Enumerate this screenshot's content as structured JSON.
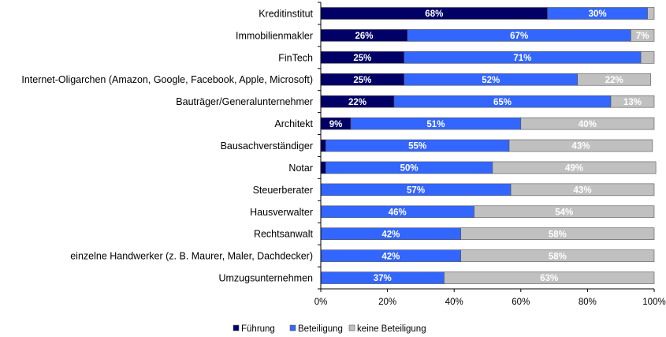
{
  "chart_data": {
    "type": "bar",
    "orientation": "horizontal",
    "stacked": true,
    "categories": [
      "Kreditinstitut",
      "Immobilienmakler",
      "FinTech",
      "Internet-Oligarchen (Amazon, Google, Facebook, Apple, Microsoft)",
      "Bauträger/Generalunternehmer",
      "Architekt",
      "Bausachverständiger",
      "Notar",
      "Steuerberater",
      "Hausverwalter",
      "Rechtsanwalt",
      "einzelne Handwerker (z. B. Maurer, Maler, Dachdecker)",
      "Umzugsunternehmen"
    ],
    "series": [
      {
        "name": "Führung",
        "color": "#000066",
        "values": [
          68,
          26,
          25,
          25,
          22,
          9,
          1.5,
          1.5,
          0,
          0,
          0,
          0,
          0
        ],
        "labels": [
          "68%",
          "26%",
          "25%",
          "25%",
          "22%",
          "9%",
          "",
          "",
          "",
          "",
          "",
          "",
          ""
        ]
      },
      {
        "name": "Beteiligung",
        "color": "#3366ff",
        "values": [
          30,
          67,
          71,
          52,
          65,
          51,
          55,
          50,
          57,
          46,
          42,
          42,
          37
        ],
        "labels": [
          "30%",
          "67%",
          "71%",
          "52%",
          "65%",
          "51%",
          "55%",
          "50%",
          "57%",
          "46%",
          "42%",
          "42%",
          "37%"
        ]
      },
      {
        "name": "keine Beteiligung",
        "color": "#c0c0c0",
        "values": [
          2,
          7,
          4,
          22,
          13,
          40,
          43,
          49,
          43,
          54,
          58,
          58,
          63
        ],
        "labels": [
          "",
          "7%",
          "",
          "22%",
          "13%",
          "40%",
          "43%",
          "49%",
          "43%",
          "54%",
          "58%",
          "58%",
          "63%"
        ]
      }
    ],
    "xaxis": {
      "ticks": [
        "0%",
        "20%",
        "40%",
        "60%",
        "80%",
        "100%"
      ],
      "range": [
        0,
        100
      ]
    },
    "legend": {
      "position": "bottom"
    },
    "grid": false
  }
}
